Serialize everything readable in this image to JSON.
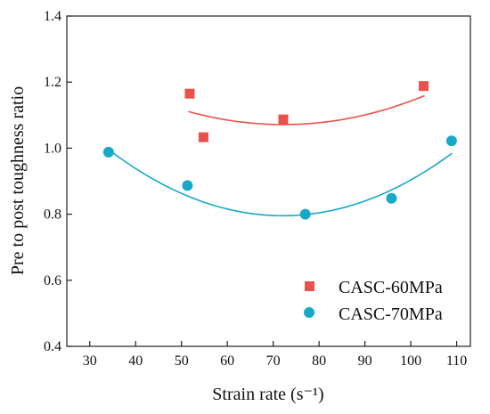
{
  "chart_data": {
    "type": "scatter",
    "xlabel": "Strain rate (s⁻¹)",
    "ylabel": "Pre to post toughness ratio",
    "xlim": [
      25,
      113
    ],
    "ylim": [
      0.4,
      1.4
    ],
    "xticks": [
      30,
      40,
      50,
      60,
      70,
      80,
      90,
      100,
      110
    ],
    "yticks": [
      0.4,
      0.6,
      0.8,
      1.0,
      1.2,
      1.4
    ],
    "xtick_labels": [
      "30",
      "40",
      "50",
      "60",
      "70",
      "80",
      "90",
      "100",
      "110"
    ],
    "ytick_labels": [
      "0.4",
      "0.6",
      "0.8",
      "1.0",
      "1.2",
      "1.4"
    ],
    "grid": false,
    "legend_position": "bottom-right",
    "series": [
      {
        "name": "CASC-60MPa",
        "marker": "square",
        "color": "#e8524a",
        "points": [
          {
            "x": 51.8,
            "y": 1.165
          },
          {
            "x": 54.8,
            "y": 1.033
          },
          {
            "x": 72.2,
            "y": 1.087
          },
          {
            "x": 102.8,
            "y": 1.188
          }
        ],
        "fit": {
          "type": "quadratic",
          "x_range": [
            51.5,
            103
          ],
          "coeffs": [
            9.23e-05,
            -0.01333,
            1.5526
          ]
        }
      },
      {
        "name": "CASC-70MPa",
        "marker": "circle",
        "color": "#17a9c6",
        "points": [
          {
            "x": 34.1,
            "y": 0.988
          },
          {
            "x": 51.3,
            "y": 0.887
          },
          {
            "x": 77.0,
            "y": 0.8
          },
          {
            "x": 95.8,
            "y": 0.848
          },
          {
            "x": 108.9,
            "y": 1.022
          }
        ],
        "fit": {
          "type": "quadratic",
          "x_range": [
            34,
            109
          ],
          "coeffs": [
            0.0001387,
            -0.019995,
            1.5161
          ]
        }
      }
    ]
  }
}
